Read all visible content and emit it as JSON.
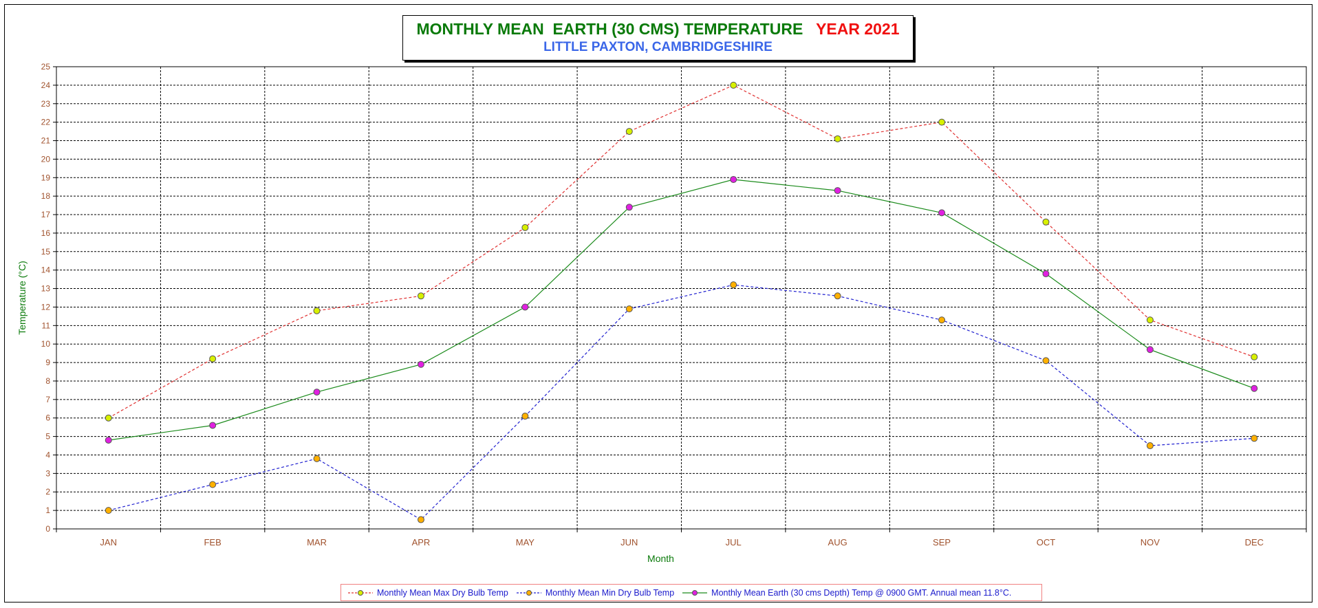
{
  "title": {
    "main": "MONTHLY MEAN  EARTH (30 CMS) TEMPERATURE",
    "year": "YEAR 2021",
    "subtitle": "LITTLE PAXTON, CAMBRIDGESHIRE"
  },
  "colors": {
    "title_main": "#0a7a0a",
    "title_year": "#f01010",
    "subtitle": "#3a66e8",
    "axis_label": "#0a7a0a",
    "tick_label": "#a0522d",
    "grid": "#000000"
  },
  "chart_data": {
    "type": "line",
    "xlabel": "Month",
    "ylabel": "Temperature (°C)",
    "ylim": [
      0,
      25
    ],
    "yticks": [
      0,
      1,
      2,
      3,
      4,
      5,
      6,
      7,
      8,
      9,
      10,
      11,
      12,
      13,
      14,
      15,
      16,
      17,
      18,
      19,
      20,
      21,
      22,
      23,
      24,
      25
    ],
    "categories": [
      "JAN",
      "FEB",
      "MAR",
      "APR",
      "MAY",
      "JUN",
      "JUL",
      "AUG",
      "SEP",
      "OCT",
      "NOV",
      "DEC"
    ],
    "grid": "dotted, on",
    "legend_position": "bottom",
    "series": [
      {
        "name": "Monthly Mean Max Dry Bulb Temp",
        "line_color": "#e03030",
        "line_style": "dashed",
        "marker_color": "#d8f000",
        "values": [
          6.0,
          9.2,
          11.8,
          12.6,
          16.3,
          21.5,
          24.0,
          21.1,
          22.0,
          16.6,
          11.3,
          9.3
        ]
      },
      {
        "name": "Monthly Mean Min Dry Bulb Temp",
        "line_color": "#2020d0",
        "line_style": "dashed",
        "marker_color": "#ffb000",
        "values": [
          1.0,
          2.4,
          3.8,
          0.5,
          6.1,
          11.9,
          13.2,
          12.6,
          11.3,
          9.1,
          4.5,
          4.9
        ]
      },
      {
        "name": "Monthly Mean Earth (30 cms Depth) Temp @ 0900 GMT. Annual mean 11.8°C.",
        "line_color": "#1a8a1a",
        "line_style": "solid",
        "marker_color": "#e020e0",
        "values": [
          4.8,
          5.6,
          7.4,
          8.9,
          12.0,
          17.4,
          18.9,
          18.3,
          17.1,
          13.8,
          9.7,
          7.6
        ]
      }
    ]
  }
}
